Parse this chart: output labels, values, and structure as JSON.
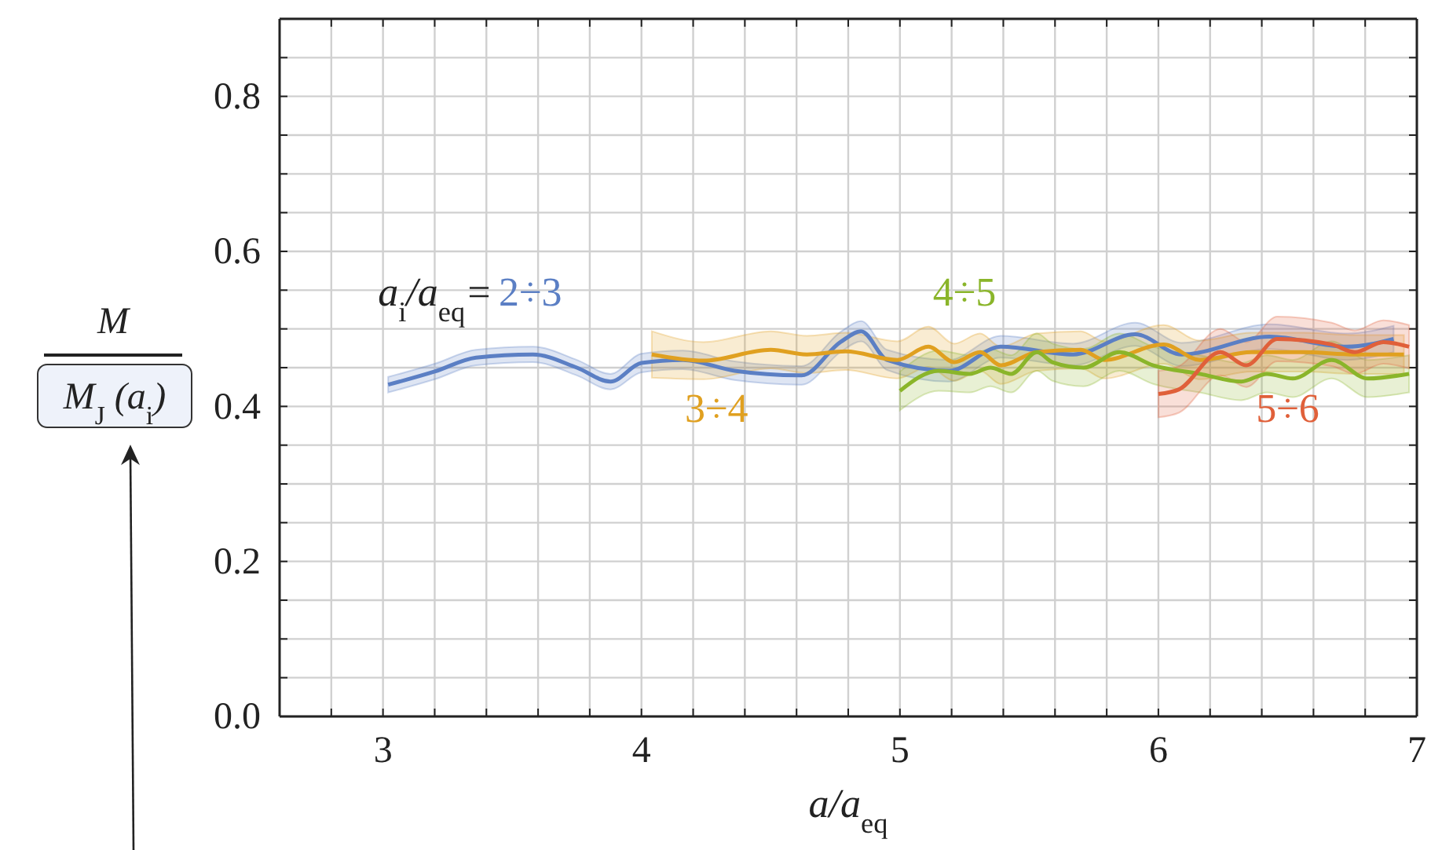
{
  "chart_data": {
    "type": "line",
    "xlabel": "a/a$_{eq}$",
    "ylabel": "M\nM$_{J}$ (a$_{i}$)",
    "annotations": [
      "a$_{i}$/a$_{eq}$="
    ],
    "xlim": [
      2.6,
      7
    ],
    "ylim": [
      0,
      0.9
    ],
    "xticks": [
      {
        "value": 2.8,
        "label": null
      },
      3,
      {
        "value": 3.2,
        "label": null
      },
      {
        "value": 3.4,
        "label": null
      },
      {
        "value": 3.6,
        "label": null
      },
      {
        "value": 3.8,
        "label": null
      },
      4,
      {
        "value": 4.2,
        "label": null
      },
      {
        "value": 4.4,
        "label": null
      },
      {
        "value": 4.6,
        "label": null
      },
      {
        "value": 4.8,
        "label": null
      },
      5,
      {
        "value": 5.2,
        "label": null
      },
      {
        "value": 5.4,
        "label": null
      },
      {
        "value": 5.6,
        "label": null
      },
      {
        "value": 5.8,
        "label": null
      },
      6,
      {
        "value": 6.2,
        "label": null
      },
      {
        "value": 6.4,
        "label": null
      },
      {
        "value": 6.6,
        "label": null
      },
      {
        "value": 6.8,
        "label": null
      },
      7
    ],
    "yticks": [
      {
        "value": 0,
        "label": "0.0"
      },
      {
        "value": 0.05,
        "label": null
      },
      {
        "value": 0.1,
        "label": null
      },
      {
        "value": 0.15,
        "label": null
      },
      {
        "value": 0.2,
        "label": "0.2"
      },
      {
        "value": 0.25,
        "label": null
      },
      {
        "value": 0.3,
        "label": null
      },
      {
        "value": 0.35,
        "label": null
      },
      {
        "value": 0.4,
        "label": "0.4"
      },
      {
        "value": 0.45,
        "label": null
      },
      {
        "value": 0.5,
        "label": null
      },
      {
        "value": 0.55,
        "label": null
      },
      {
        "value": 0.6,
        "label": "0.6"
      },
      {
        "value": 0.65,
        "label": null
      },
      {
        "value": 0.7,
        "label": null
      },
      {
        "value": 0.75,
        "label": null
      },
      {
        "value": 0.8,
        "label": "0.8"
      },
      {
        "value": 0.85,
        "label": null
      },
      {
        "value": 0.9,
        "label": null
      }
    ],
    "grid": true,
    "line_style": "solid",
    "series": [
      {
        "name": "2÷3",
        "color": "#5b7fc4",
        "x": [
          3.02,
          3.2,
          3.36,
          3.58,
          3.75,
          3.88,
          4.0,
          4.16,
          4.36,
          4.62,
          4.77,
          4.85,
          4.95,
          5.19,
          5.39,
          5.67,
          5.91,
          6.09,
          6.43,
          6.73,
          6.91
        ],
        "values": [
          0.428,
          0.445,
          0.463,
          0.467,
          0.45,
          0.432,
          0.456,
          0.46,
          0.446,
          0.44,
          0.483,
          0.497,
          0.46,
          0.446,
          0.477,
          0.467,
          0.493,
          0.467,
          0.49,
          0.477,
          0.487
        ],
        "lower": [
          0.418,
          0.435,
          0.453,
          0.457,
          0.44,
          0.422,
          0.444,
          0.448,
          0.434,
          0.428,
          0.47,
          0.484,
          0.447,
          0.432,
          0.463,
          0.453,
          0.478,
          0.452,
          0.474,
          0.46,
          0.47
        ],
        "upper": [
          0.438,
          0.455,
          0.473,
          0.477,
          0.46,
          0.442,
          0.468,
          0.472,
          0.458,
          0.452,
          0.496,
          0.51,
          0.473,
          0.46,
          0.491,
          0.481,
          0.508,
          0.482,
          0.506,
          0.494,
          0.504
        ]
      },
      {
        "name": "3÷4",
        "color": "#e0a020",
        "x": [
          4.04,
          4.24,
          4.5,
          4.64,
          4.79,
          4.99,
          5.11,
          5.21,
          5.31,
          5.39,
          5.53,
          5.7,
          5.79,
          6.02,
          6.16,
          6.36,
          6.56,
          6.76,
          6.95
        ],
        "values": [
          0.467,
          0.459,
          0.473,
          0.467,
          0.471,
          0.46,
          0.477,
          0.457,
          0.47,
          0.453,
          0.47,
          0.473,
          0.46,
          0.48,
          0.46,
          0.47,
          0.47,
          0.467,
          0.467
        ],
        "lower": [
          0.437,
          0.435,
          0.449,
          0.443,
          0.447,
          0.436,
          0.451,
          0.433,
          0.446,
          0.429,
          0.446,
          0.449,
          0.436,
          0.455,
          0.435,
          0.445,
          0.445,
          0.442,
          0.442
        ],
        "upper": [
          0.497,
          0.483,
          0.497,
          0.491,
          0.495,
          0.484,
          0.503,
          0.481,
          0.494,
          0.477,
          0.494,
          0.497,
          0.484,
          0.505,
          0.485,
          0.495,
          0.495,
          0.492,
          0.492
        ]
      },
      {
        "name": "4÷5",
        "color": "#8ab52a",
        "x": [
          5.0,
          5.15,
          5.27,
          5.35,
          5.43,
          5.53,
          5.59,
          5.71,
          5.85,
          5.98,
          6.16,
          6.32,
          6.42,
          6.52,
          6.67,
          6.81,
          6.97
        ],
        "values": [
          0.42,
          0.446,
          0.442,
          0.45,
          0.442,
          0.47,
          0.457,
          0.45,
          0.47,
          0.453,
          0.442,
          0.432,
          0.442,
          0.436,
          0.46,
          0.436,
          0.442
        ],
        "lower": [
          0.395,
          0.42,
          0.418,
          0.426,
          0.418,
          0.446,
          0.433,
          0.426,
          0.446,
          0.429,
          0.418,
          0.408,
          0.418,
          0.412,
          0.436,
          0.412,
          0.418
        ],
        "upper": [
          0.445,
          0.472,
          0.466,
          0.474,
          0.466,
          0.494,
          0.481,
          0.474,
          0.494,
          0.477,
          0.466,
          0.456,
          0.466,
          0.46,
          0.484,
          0.46,
          0.466
        ]
      },
      {
        "name": "5÷6",
        "color": "#e0603a",
        "x": [
          6.0,
          6.08,
          6.24,
          6.34,
          6.46,
          6.67,
          6.76,
          6.87,
          6.97
        ],
        "values": [
          0.416,
          0.422,
          0.47,
          0.453,
          0.487,
          0.48,
          0.47,
          0.483,
          0.477
        ],
        "lower": [
          0.386,
          0.392,
          0.44,
          0.425,
          0.458,
          0.452,
          0.442,
          0.455,
          0.449
        ],
        "upper": [
          0.446,
          0.452,
          0.5,
          0.483,
          0.516,
          0.508,
          0.498,
          0.511,
          0.505
        ]
      }
    ]
  }
}
